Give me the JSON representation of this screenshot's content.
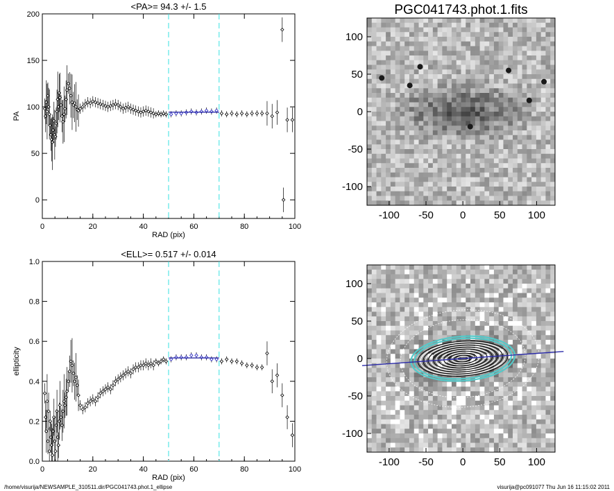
{
  "footer_left": "/home/visurija/NEWSAMPLE_310511.dir/PGC041743.phot.1_ellipse",
  "footer_right": "visurija@pc091077  Thu Jun 16 11:15:02 2011",
  "chart_data": [
    {
      "type": "scatter",
      "title": "<PA>=  94.3 +/-   1.5",
      "xlabel": "RAD (pix)",
      "ylabel": "PA",
      "xlim": [
        0,
        100
      ],
      "ylim": [
        -20,
        200
      ],
      "xticks": [
        0,
        20,
        40,
        60,
        80,
        100
      ],
      "yticks": [
        0,
        50,
        100,
        150,
        200
      ],
      "vlines": [
        50,
        70
      ],
      "fit_range": [
        50,
        70
      ],
      "fit_value": 94.3,
      "points": [
        [
          1,
          98
        ],
        [
          1.3,
          90
        ],
        [
          1.6,
          105
        ],
        [
          1.9,
          95
        ],
        [
          2.2,
          112
        ],
        [
          2.5,
          100
        ],
        [
          2.8,
          92
        ],
        [
          3.1,
          80
        ],
        [
          3.4,
          70
        ],
        [
          3.7,
          65
        ],
        [
          4,
          62
        ],
        [
          4.3,
          75
        ],
        [
          4.6,
          85
        ],
        [
          4.9,
          70
        ],
        [
          5.2,
          68
        ],
        [
          5.5,
          82
        ],
        [
          5.8,
          95
        ],
        [
          6.1,
          108
        ],
        [
          6.4,
          100
        ],
        [
          6.7,
          115
        ],
        [
          7,
          110
        ],
        [
          7.4,
          102
        ],
        [
          7.8,
          90
        ],
        [
          8.2,
          84
        ],
        [
          8.6,
          92
        ],
        [
          9,
          98
        ],
        [
          9.4,
          108
        ],
        [
          9.8,
          118
        ],
        [
          10.3,
          125
        ],
        [
          10.8,
          120
        ],
        [
          11.3,
          112
        ],
        [
          11.8,
          105
        ],
        [
          12.3,
          102
        ],
        [
          12.8,
          104
        ],
        [
          13.3,
          100
        ],
        [
          13.8,
          97
        ],
        [
          14.3,
          96
        ],
        [
          15,
          98
        ],
        [
          16,
          100
        ],
        [
          17,
          103
        ],
        [
          18,
          105
        ],
        [
          19,
          104
        ],
        [
          20,
          106
        ],
        [
          21,
          105
        ],
        [
          22,
          104
        ],
        [
          23,
          103
        ],
        [
          24,
          102
        ],
        [
          25,
          101
        ],
        [
          26,
          100
        ],
        [
          27,
          101
        ],
        [
          28,
          102
        ],
        [
          29,
          103
        ],
        [
          30,
          102
        ],
        [
          31,
          100
        ],
        [
          32,
          98
        ],
        [
          33,
          99
        ],
        [
          34,
          100
        ],
        [
          35,
          98
        ],
        [
          36,
          97
        ],
        [
          37,
          96
        ],
        [
          38,
          95
        ],
        [
          39,
          94
        ],
        [
          40,
          95
        ],
        [
          41,
          96
        ],
        [
          42,
          95
        ],
        [
          43,
          94
        ],
        [
          44,
          93
        ],
        [
          45,
          92
        ],
        [
          46,
          93
        ],
        [
          47,
          92
        ],
        [
          48,
          93
        ],
        [
          49,
          92
        ],
        [
          51,
          92
        ],
        [
          53,
          93
        ],
        [
          55,
          93
        ],
        [
          57,
          94
        ],
        [
          59,
          95
        ],
        [
          61,
          94
        ],
        [
          63,
          95
        ],
        [
          65,
          96
        ],
        [
          67,
          95
        ],
        [
          69,
          96
        ],
        [
          71,
          93
        ],
        [
          73,
          92
        ],
        [
          75,
          93
        ],
        [
          77,
          92
        ],
        [
          79,
          93
        ],
        [
          81,
          92
        ],
        [
          83,
          93
        ],
        [
          85,
          93
        ],
        [
          87,
          93
        ],
        [
          89,
          93
        ],
        [
          91,
          90
        ],
        [
          93,
          94
        ],
        [
          95,
          183
        ],
        [
          95.5,
          0
        ],
        [
          97,
          86
        ],
        [
          99,
          86
        ]
      ]
    },
    {
      "type": "image",
      "title": "PGC041743.phot.1.fits",
      "xlim": [
        -130,
        125
      ],
      "ylim": [
        -125,
        125
      ],
      "xticks": [
        -100,
        -50,
        0,
        50,
        100
      ],
      "yticks": [
        -100,
        -50,
        0,
        50,
        100
      ]
    },
    {
      "type": "scatter",
      "title": "<ELL>= 0.517 +/-  0.014",
      "xlabel": "RAD (pix)",
      "ylabel": "ellipticity",
      "xlim": [
        0,
        100
      ],
      "ylim": [
        0,
        1
      ],
      "xticks": [
        0,
        20,
        40,
        60,
        80,
        100
      ],
      "yticks": [
        0.0,
        0.2,
        0.4,
        0.6,
        0.8,
        1.0
      ],
      "vlines": [
        50,
        70
      ],
      "fit_range": [
        50,
        70
      ],
      "fit_value": 0.517,
      "points": [
        [
          1,
          0.34
        ],
        [
          1.3,
          0.22
        ],
        [
          1.6,
          0.15
        ],
        [
          1.9,
          0.3
        ],
        [
          2.2,
          0.1
        ],
        [
          2.5,
          0.25
        ],
        [
          2.8,
          0.05
        ],
        [
          3.1,
          0.2
        ],
        [
          3.4,
          0.12
        ],
        [
          3.7,
          0.08
        ],
        [
          4,
          0.03
        ],
        [
          4.3,
          0.15
        ],
        [
          4.6,
          0.22
        ],
        [
          4.9,
          0.1
        ],
        [
          5.2,
          0.05
        ],
        [
          5.5,
          0.18
        ],
        [
          5.8,
          0.25
        ],
        [
          6.1,
          0.12
        ],
        [
          6.4,
          0.08
        ],
        [
          6.7,
          0.2
        ],
        [
          7,
          0.28
        ],
        [
          7.4,
          0.22
        ],
        [
          7.8,
          0.18
        ],
        [
          8.2,
          0.25
        ],
        [
          8.6,
          0.3
        ],
        [
          9,
          0.28
        ],
        [
          9.4,
          0.32
        ],
        [
          9.8,
          0.35
        ],
        [
          10.3,
          0.4
        ],
        [
          10.8,
          0.45
        ],
        [
          11.3,
          0.5
        ],
        [
          11.8,
          0.48
        ],
        [
          12.3,
          0.44
        ],
        [
          12.8,
          0.4
        ],
        [
          13.3,
          0.42
        ],
        [
          13.8,
          0.38
        ],
        [
          14.3,
          0.33
        ],
        [
          15,
          0.28
        ],
        [
          16,
          0.26
        ],
        [
          17,
          0.27
        ],
        [
          18,
          0.29
        ],
        [
          19,
          0.3
        ],
        [
          20,
          0.31
        ],
        [
          21,
          0.3
        ],
        [
          22,
          0.32
        ],
        [
          23,
          0.34
        ],
        [
          24,
          0.35
        ],
        [
          25,
          0.36
        ],
        [
          26,
          0.37
        ],
        [
          27,
          0.36
        ],
        [
          28,
          0.38
        ],
        [
          29,
          0.4
        ],
        [
          30,
          0.41
        ],
        [
          31,
          0.42
        ],
        [
          32,
          0.43
        ],
        [
          33,
          0.44
        ],
        [
          34,
          0.45
        ],
        [
          35,
          0.44
        ],
        [
          36,
          0.46
        ],
        [
          37,
          0.47
        ],
        [
          38,
          0.47
        ],
        [
          39,
          0.48
        ],
        [
          40,
          0.48
        ],
        [
          41,
          0.49
        ],
        [
          42,
          0.48
        ],
        [
          43,
          0.49
        ],
        [
          44,
          0.48
        ],
        [
          45,
          0.5
        ],
        [
          46,
          0.49
        ],
        [
          47,
          0.5
        ],
        [
          48,
          0.51
        ],
        [
          49,
          0.5
        ],
        [
          51,
          0.51
        ],
        [
          53,
          0.52
        ],
        [
          55,
          0.52
        ],
        [
          57,
          0.52
        ],
        [
          59,
          0.53
        ],
        [
          61,
          0.53
        ],
        [
          63,
          0.52
        ],
        [
          65,
          0.52
        ],
        [
          67,
          0.51
        ],
        [
          69,
          0.51
        ],
        [
          71,
          0.5
        ],
        [
          73,
          0.51
        ],
        [
          75,
          0.5
        ],
        [
          77,
          0.5
        ],
        [
          79,
          0.49
        ],
        [
          81,
          0.48
        ],
        [
          83,
          0.48
        ],
        [
          85,
          0.47
        ],
        [
          87,
          0.47
        ],
        [
          89,
          0.54
        ],
        [
          91,
          0.4
        ],
        [
          93,
          0.43
        ],
        [
          95,
          0.33
        ],
        [
          97,
          0.22
        ],
        [
          99,
          0.13
        ]
      ]
    },
    {
      "type": "image",
      "title": "",
      "xlim": [
        -130,
        125
      ],
      "ylim": [
        -125,
        125
      ],
      "xticks": [
        -100,
        -50,
        0,
        50,
        100
      ],
      "yticks": [
        -100,
        -50,
        0,
        50,
        100
      ]
    }
  ]
}
